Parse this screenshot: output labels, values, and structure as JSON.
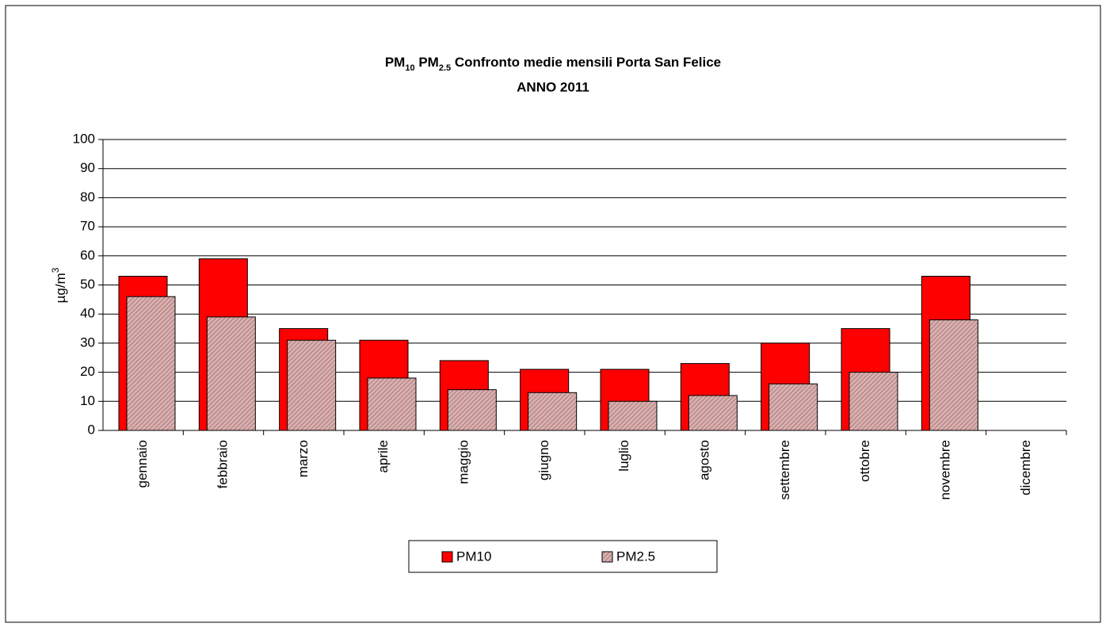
{
  "chart_data": {
    "type": "bar",
    "title": "PM10 PM2.5 Confronto medie mensili Porta San Felice",
    "subtitle": "ANNO 2011",
    "y_label": "µg/m3",
    "categories": [
      "gennaio",
      "febbraio",
      "marzo",
      "aprile",
      "maggio",
      "giugno",
      "luglio",
      "agosto",
      "settembre",
      "ottobre",
      "novembre",
      "dicembre"
    ],
    "series": [
      {
        "name": "PM10",
        "color": "#ff0000",
        "values": [
          53,
          59,
          35,
          31,
          24,
          21,
          21,
          23,
          30,
          35,
          53,
          null
        ]
      },
      {
        "name": "PM2.5",
        "color": "#cc9999",
        "values": [
          46,
          39,
          31,
          18,
          14,
          13,
          10,
          12,
          16,
          20,
          38,
          null
        ]
      }
    ],
    "ylim": [
      0,
      100
    ],
    "yticks": [
      0,
      10,
      20,
      30,
      40,
      50,
      60,
      70,
      80,
      90,
      100
    ],
    "grid": true,
    "legend": "bottom"
  }
}
